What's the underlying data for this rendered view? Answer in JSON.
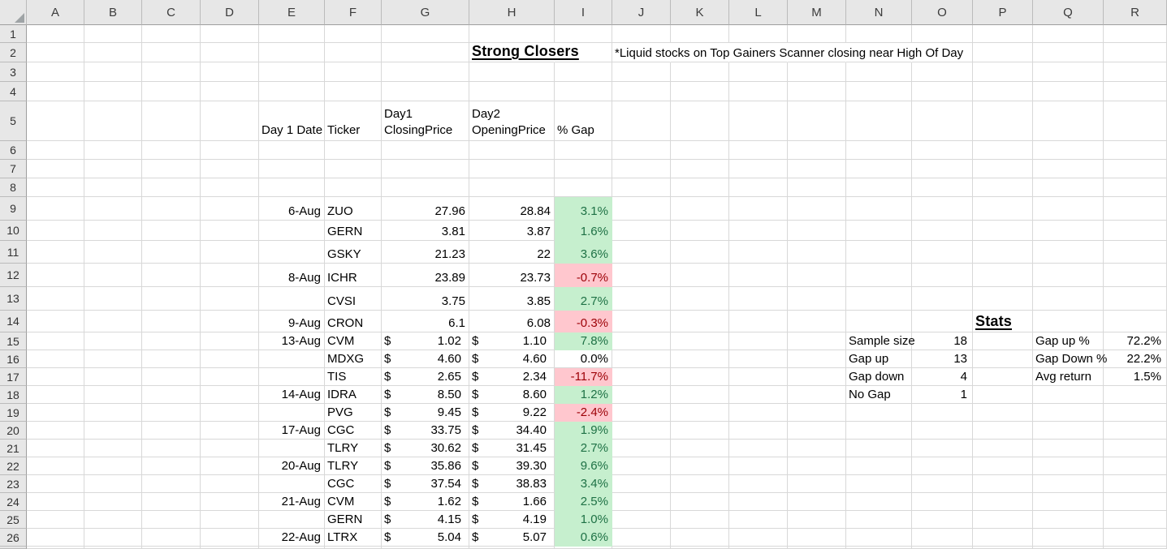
{
  "app": {
    "name": "spreadsheet"
  },
  "colors": {
    "gap_up_bg": "#C6EFCE",
    "gap_up_text": "#1E7145",
    "gap_down_bg": "#FFC7CE",
    "gap_down_text": "#9C0006",
    "header_bg": "#E7E7E7",
    "gridline": "#D8D8D8"
  },
  "title": {
    "text": "Strong Closers",
    "cell": "H2"
  },
  "note": {
    "text": "*Liquid stocks on Top Gainers Scanner closing near High Of Day",
    "cell": "J2"
  },
  "sheet": {
    "corner": "",
    "columns": [
      {
        "letter": "A",
        "width": 71
      },
      {
        "letter": "B",
        "width": 71
      },
      {
        "letter": "C",
        "width": 72
      },
      {
        "letter": "D",
        "width": 72
      },
      {
        "letter": "E",
        "width": 81
      },
      {
        "letter": "F",
        "width": 70
      },
      {
        "letter": "G",
        "width": 108
      },
      {
        "letter": "H",
        "width": 105
      },
      {
        "letter": "I",
        "width": 71
      },
      {
        "letter": "J",
        "width": 72
      },
      {
        "letter": "K",
        "width": 72
      },
      {
        "letter": "L",
        "width": 72
      },
      {
        "letter": "M",
        "width": 72
      },
      {
        "letter": "N",
        "width": 81
      },
      {
        "letter": "O",
        "width": 75
      },
      {
        "letter": "P",
        "width": 74
      },
      {
        "letter": "Q",
        "width": 87
      },
      {
        "letter": "R",
        "width": 78
      }
    ],
    "rows": [
      {
        "n": 1,
        "h": 22
      },
      {
        "n": 2,
        "h": 24
      },
      {
        "n": 3,
        "h": 24
      },
      {
        "n": 4,
        "h": 24
      },
      {
        "n": 5,
        "h": 49
      },
      {
        "n": 6,
        "h": 23
      },
      {
        "n": 7,
        "h": 23
      },
      {
        "n": 8,
        "h": 23
      },
      {
        "n": 9,
        "h": 29
      },
      {
        "n": 10,
        "h": 25
      },
      {
        "n": 11,
        "h": 28
      },
      {
        "n": 12,
        "h": 29
      },
      {
        "n": 13,
        "h": 29
      },
      {
        "n": 14,
        "h": 27
      },
      {
        "n": 15,
        "h": 22
      },
      {
        "n": 16,
        "h": 22
      },
      {
        "n": 17,
        "h": 22
      },
      {
        "n": 18,
        "h": 22
      },
      {
        "n": 19,
        "h": 22
      },
      {
        "n": 20,
        "h": 22
      },
      {
        "n": 21,
        "h": 22
      },
      {
        "n": 22,
        "h": 22
      },
      {
        "n": 23,
        "h": 22
      },
      {
        "n": 24,
        "h": 22
      },
      {
        "n": 25,
        "h": 22
      },
      {
        "n": 26,
        "h": 22
      },
      {
        "n": "",
        "h": 3
      }
    ]
  },
  "table": {
    "header_row": 5,
    "headers": {
      "date": "Day 1 Date",
      "ticker": "Ticker",
      "close": "Day1\nClosingPrice",
      "open": "Day2\nOpeningPrice",
      "gap": "% Gap"
    },
    "currency_symbol": "$",
    "rows": [
      {
        "row": 9,
        "date": "6-Aug",
        "ticker": "ZUO",
        "close": "27.96",
        "open": "28.84",
        "currency": false,
        "gap": "3.1%",
        "gap_state": "up"
      },
      {
        "row": 10,
        "date": "",
        "ticker": "GERN",
        "close": "3.81",
        "open": "3.87",
        "currency": false,
        "gap": "1.6%",
        "gap_state": "up"
      },
      {
        "row": 11,
        "date": "",
        "ticker": "GSKY",
        "close": "21.23",
        "open": "22",
        "currency": false,
        "gap": "3.6%",
        "gap_state": "up"
      },
      {
        "row": 12,
        "date": "8-Aug",
        "ticker": "ICHR",
        "close": "23.89",
        "open": "23.73",
        "currency": false,
        "gap": "-0.7%",
        "gap_state": "down"
      },
      {
        "row": 13,
        "date": "",
        "ticker": "CVSI",
        "close": "3.75",
        "open": "3.85",
        "currency": false,
        "gap": "2.7%",
        "gap_state": "up"
      },
      {
        "row": 14,
        "date": "9-Aug",
        "ticker": "CRON",
        "close": "6.1",
        "open": "6.08",
        "currency": false,
        "gap": "-0.3%",
        "gap_state": "down"
      },
      {
        "row": 15,
        "date": "13-Aug",
        "ticker": "CVM",
        "close": "1.02",
        "open": "1.10",
        "currency": true,
        "gap": "7.8%",
        "gap_state": "up"
      },
      {
        "row": 16,
        "date": "",
        "ticker": "MDXG",
        "close": "4.60",
        "open": "4.60",
        "currency": true,
        "gap": "0.0%",
        "gap_state": "flat"
      },
      {
        "row": 17,
        "date": "",
        "ticker": "TIS",
        "close": "2.65",
        "open": "2.34",
        "currency": true,
        "gap": "-11.7%",
        "gap_state": "down"
      },
      {
        "row": 18,
        "date": "14-Aug",
        "ticker": "IDRA",
        "close": "8.50",
        "open": "8.60",
        "currency": true,
        "gap": "1.2%",
        "gap_state": "up"
      },
      {
        "row": 19,
        "date": "",
        "ticker": "PVG",
        "close": "9.45",
        "open": "9.22",
        "currency": true,
        "gap": "-2.4%",
        "gap_state": "down"
      },
      {
        "row": 20,
        "date": "17-Aug",
        "ticker": "CGC",
        "close": "33.75",
        "open": "34.40",
        "currency": true,
        "gap": "1.9%",
        "gap_state": "up"
      },
      {
        "row": 21,
        "date": "",
        "ticker": "TLRY",
        "close": "30.62",
        "open": "31.45",
        "currency": true,
        "gap": "2.7%",
        "gap_state": "up"
      },
      {
        "row": 22,
        "date": "20-Aug",
        "ticker": "TLRY",
        "close": "35.86",
        "open": "39.30",
        "currency": true,
        "gap": "9.6%",
        "gap_state": "up"
      },
      {
        "row": 23,
        "date": "",
        "ticker": "CGC",
        "close": "37.54",
        "open": "38.83",
        "currency": true,
        "gap": "3.4%",
        "gap_state": "up"
      },
      {
        "row": 24,
        "date": "21-Aug",
        "ticker": "CVM",
        "close": "1.62",
        "open": "1.66",
        "currency": true,
        "gap": "2.5%",
        "gap_state": "up"
      },
      {
        "row": 25,
        "date": "",
        "ticker": "GERN",
        "close": "4.15",
        "open": "4.19",
        "currency": true,
        "gap": "1.0%",
        "gap_state": "up"
      },
      {
        "row": 26,
        "date": "22-Aug",
        "ticker": "LTRX",
        "close": "5.04",
        "open": "5.07",
        "currency": true,
        "gap": "0.6%",
        "gap_state": "up"
      }
    ]
  },
  "stats": {
    "title": "Stats",
    "title_cell": "P14",
    "counts": [
      {
        "row": 15,
        "label": "Sample size",
        "value": "18"
      },
      {
        "row": 16,
        "label": "Gap up",
        "value": "13"
      },
      {
        "row": 17,
        "label": "Gap down",
        "value": "4"
      },
      {
        "row": 18,
        "label": "No Gap",
        "value": "1"
      }
    ],
    "ratios": [
      {
        "row": 15,
        "label": "Gap up %",
        "value": "72.2%"
      },
      {
        "row": 16,
        "label": "Gap Down %",
        "value": "22.2%"
      },
      {
        "row": 17,
        "label": "Avg return",
        "value": "1.5%"
      }
    ]
  }
}
